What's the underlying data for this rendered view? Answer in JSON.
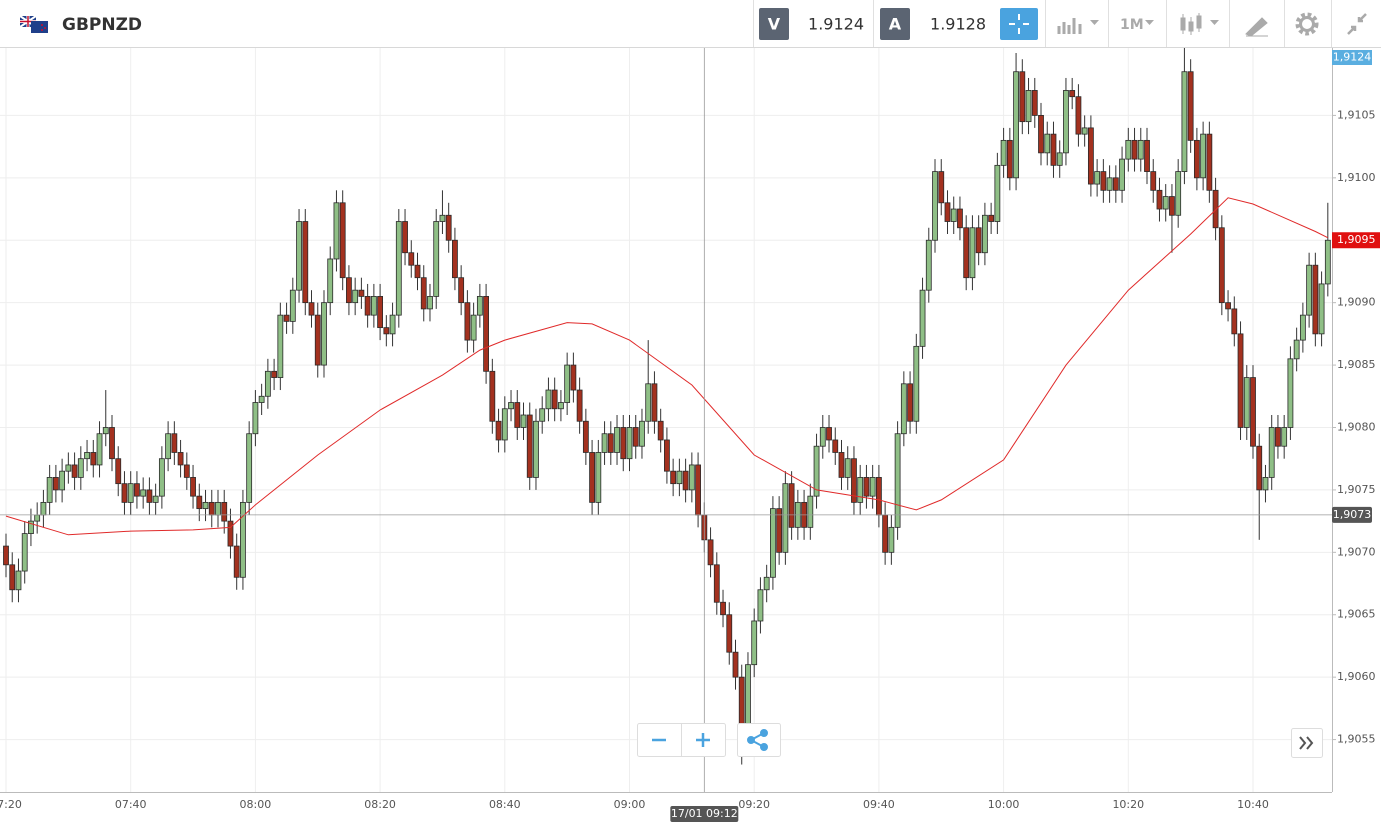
{
  "header": {
    "symbol": "GBPNZD",
    "sell": {
      "label": "V",
      "price": "1.9124"
    },
    "buy": {
      "label": "A",
      "price": "1.9128"
    },
    "timeframe": "1M"
  },
  "chart_data": {
    "type": "candlestick",
    "x": [
      "07:20",
      "07:21",
      "07:22",
      "07:23",
      "07:24",
      "07:25",
      "07:26",
      "07:27",
      "07:28",
      "07:29",
      "07:30",
      "07:31",
      "07:32",
      "07:33",
      "07:34",
      "07:35",
      "07:36",
      "07:37",
      "07:38",
      "07:39",
      "07:40",
      "07:41",
      "07:42",
      "07:43",
      "07:44",
      "07:45",
      "07:46",
      "07:47",
      "07:48",
      "07:49",
      "07:50",
      "07:51",
      "07:52",
      "07:53",
      "07:54",
      "07:55",
      "07:56",
      "07:57",
      "07:58",
      "07:59",
      "08:00",
      "08:01",
      "08:02",
      "08:03",
      "08:04",
      "08:05",
      "08:06",
      "08:07",
      "08:08",
      "08:09",
      "08:10",
      "08:11",
      "08:12",
      "08:13",
      "08:14",
      "08:15",
      "08:16",
      "08:17",
      "08:18",
      "08:19",
      "08:20",
      "08:21",
      "08:22",
      "08:23",
      "08:24",
      "08:25",
      "08:26",
      "08:27",
      "08:28",
      "08:29",
      "08:30",
      "08:31",
      "08:32",
      "08:33",
      "08:34",
      "08:35",
      "08:36",
      "08:37",
      "08:38",
      "08:39",
      "08:40",
      "08:41",
      "08:42",
      "08:43",
      "08:44",
      "08:45",
      "08:46",
      "08:47",
      "08:48",
      "08:49",
      "08:50",
      "08:51",
      "08:52",
      "08:53",
      "08:54",
      "08:55",
      "08:56",
      "08:57",
      "08:58",
      "08:59",
      "09:00",
      "09:01",
      "09:02",
      "09:03",
      "09:04",
      "09:05",
      "09:06",
      "09:07",
      "09:08",
      "09:09",
      "09:10",
      "09:11",
      "09:12",
      "09:13",
      "09:14",
      "09:15",
      "09:16",
      "09:17",
      "09:18",
      "09:19",
      "09:20",
      "09:21",
      "09:22",
      "09:23",
      "09:24",
      "09:25",
      "09:26",
      "09:27",
      "09:28",
      "09:29",
      "09:30",
      "09:31",
      "09:32",
      "09:33",
      "09:34",
      "09:35",
      "09:36",
      "09:37",
      "09:38",
      "09:39",
      "09:40",
      "09:41",
      "09:42",
      "09:43",
      "09:44",
      "09:45",
      "09:46",
      "09:47",
      "09:48",
      "09:49",
      "09:50",
      "09:51",
      "09:52",
      "09:53",
      "09:54",
      "09:55",
      "09:56",
      "09:57",
      "09:58",
      "09:59",
      "10:00",
      "10:01",
      "10:02",
      "10:03",
      "10:04",
      "10:05",
      "10:06",
      "10:07",
      "10:08",
      "10:09",
      "10:10",
      "10:11",
      "10:12",
      "10:13",
      "10:14",
      "10:15",
      "10:16",
      "10:17",
      "10:18",
      "10:19",
      "10:20",
      "10:21",
      "10:22",
      "10:23",
      "10:24",
      "10:25",
      "10:26",
      "10:27",
      "10:28",
      "10:29",
      "10:30",
      "10:31",
      "10:32",
      "10:33",
      "10:34",
      "10:35",
      "10:36",
      "10:37",
      "10:38",
      "10:39",
      "10:40",
      "10:41",
      "10:42",
      "10:43",
      "10:44",
      "10:45",
      "10:46",
      "10:47",
      "10:48",
      "10:49",
      "10:50",
      "10:51",
      "10:52"
    ],
    "open": [
      1.90705,
      1.9069,
      1.9067,
      1.90685,
      1.90715,
      1.90725,
      1.9073,
      1.9074,
      1.9076,
      1.9075,
      1.90765,
      1.9077,
      1.9076,
      1.90775,
      1.9078,
      1.9077,
      1.90795,
      1.908,
      1.90775,
      1.90755,
      1.9074,
      1.90755,
      1.90745,
      1.9075,
      1.9074,
      1.90745,
      1.90775,
      1.90795,
      1.9078,
      1.9077,
      1.9076,
      1.90745,
      1.90735,
      1.9074,
      1.9073,
      1.9074,
      1.90725,
      1.90705,
      1.9068,
      1.9074,
      1.90795,
      1.9082,
      1.90825,
      1.90845,
      1.9084,
      1.9089,
      1.90885,
      1.9091,
      1.90965,
      1.909,
      1.9089,
      1.9085,
      1.909,
      1.90935,
      1.9098,
      1.9092,
      1.909,
      1.9091,
      1.90905,
      1.9089,
      1.90905,
      1.9088,
      1.90875,
      1.9089,
      1.90965,
      1.9094,
      1.9093,
      1.9092,
      1.90895,
      1.90905,
      1.90965,
      1.9097,
      1.9095,
      1.9092,
      1.909,
      1.9087,
      1.9089,
      1.90905,
      1.90845,
      1.90805,
      1.9079,
      1.90815,
      1.9082,
      1.908,
      1.9081,
      1.9076,
      1.90805,
      1.90815,
      1.9083,
      1.90815,
      1.9082,
      1.9085,
      1.9083,
      1.90805,
      1.9078,
      1.9074,
      1.9078,
      1.90795,
      1.9078,
      1.908,
      1.90775,
      1.908,
      1.90785,
      1.90805,
      1.90835,
      1.90805,
      1.9079,
      1.90765,
      1.90755,
      1.90765,
      1.9075,
      1.9077,
      1.9073,
      1.9071,
      1.9069,
      1.9066,
      1.9065,
      1.9062,
      1.906,
      1.9056,
      1.9061,
      1.90645,
      1.9067,
      1.9068,
      1.90735,
      1.907,
      1.90755,
      1.9072,
      1.9074,
      1.9072,
      1.90745,
      1.90785,
      1.908,
      1.9079,
      1.9078,
      1.9076,
      1.90775,
      1.9074,
      1.9076,
      1.90745,
      1.9076,
      1.9073,
      1.907,
      1.9072,
      1.90795,
      1.90835,
      1.90805,
      1.90865,
      1.9091,
      1.9095,
      1.91005,
      1.9098,
      1.90965,
      1.90975,
      1.9096,
      1.9092,
      1.9096,
      1.9094,
      1.9097,
      1.90965,
      1.9101,
      1.9103,
      1.91,
      1.91085,
      1.91045,
      1.9107,
      1.9105,
      1.9102,
      1.91035,
      1.9101,
      1.9102,
      1.9107,
      1.91065,
      1.91035,
      1.9104,
      1.90995,
      1.91005,
      1.9099,
      1.91,
      1.9099,
      1.91015,
      1.9103,
      1.91015,
      1.9103,
      1.91005,
      1.9099,
      1.90975,
      1.90985,
      1.9097,
      1.91005,
      1.91085,
      1.9103,
      1.91,
      1.91035,
      1.9099,
      1.9096,
      1.909,
      1.90895,
      1.90875,
      1.908,
      1.9084,
      1.90785,
      1.9075,
      1.9076,
      1.908,
      1.90785,
      1.908,
      1.90855,
      1.9087,
      1.9089,
      1.9093,
      1.90875,
      1.90915
    ],
    "high": [
      1.90715,
      1.907,
      1.90695,
      1.90725,
      1.90735,
      1.9074,
      1.9075,
      1.9077,
      1.9077,
      1.90775,
      1.9078,
      1.9078,
      1.90785,
      1.9079,
      1.9079,
      1.90805,
      1.9083,
      1.9081,
      1.90785,
      1.90765,
      1.90765,
      1.90765,
      1.9076,
      1.9076,
      1.90755,
      1.90785,
      1.90805,
      1.90805,
      1.9079,
      1.9078,
      1.9077,
      1.90755,
      1.9075,
      1.9075,
      1.9075,
      1.9075,
      1.90735,
      1.90715,
      1.9075,
      1.90805,
      1.9083,
      1.90835,
      1.90855,
      1.90855,
      1.909,
      1.909,
      1.9092,
      1.90975,
      1.90975,
      1.9091,
      1.909,
      1.9091,
      1.90945,
      1.9099,
      1.9099,
      1.9093,
      1.9092,
      1.9092,
      1.90915,
      1.90915,
      1.90915,
      1.9089,
      1.909,
      1.90975,
      1.90975,
      1.9095,
      1.9094,
      1.9093,
      1.90915,
      1.90975,
      1.9099,
      1.9098,
      1.9096,
      1.9093,
      1.9091,
      1.909,
      1.90915,
      1.90915,
      1.90855,
      1.90815,
      1.90825,
      1.9083,
      1.9083,
      1.9082,
      1.9082,
      1.90815,
      1.90825,
      1.9084,
      1.9084,
      1.9083,
      1.9086,
      1.9086,
      1.9084,
      1.90815,
      1.9079,
      1.9079,
      1.90805,
      1.90805,
      1.9081,
      1.9081,
      1.9081,
      1.9081,
      1.90815,
      1.9087,
      1.90845,
      1.90815,
      1.908,
      1.90775,
      1.90775,
      1.90775,
      1.9078,
      1.9078,
      1.9074,
      1.9072,
      1.907,
      1.9067,
      1.9066,
      1.9063,
      1.9061,
      1.9062,
      1.90655,
      1.9068,
      1.9069,
      1.90745,
      1.90745,
      1.90765,
      1.90765,
      1.9075,
      1.9075,
      1.90755,
      1.90795,
      1.9081,
      1.9081,
      1.908,
      1.9079,
      1.90785,
      1.90785,
      1.9077,
      1.9077,
      1.9077,
      1.9077,
      1.9074,
      1.9073,
      1.90805,
      1.90845,
      1.90845,
      1.90875,
      1.9092,
      1.9096,
      1.91015,
      1.91015,
      1.9099,
      1.90985,
      1.90985,
      1.9097,
      1.9097,
      1.9097,
      1.9098,
      1.9098,
      1.9102,
      1.9104,
      1.9104,
      1.911,
      1.91095,
      1.9108,
      1.9108,
      1.9106,
      1.91045,
      1.91045,
      1.9103,
      1.9108,
      1.9108,
      1.91075,
      1.9105,
      1.9105,
      1.91015,
      1.91015,
      1.9101,
      1.9101,
      1.91025,
      1.9104,
      1.9104,
      1.9104,
      1.9104,
      1.91015,
      1.91,
      1.90995,
      1.90995,
      1.91015,
      1.9111,
      1.91095,
      1.9104,
      1.91045,
      1.91045,
      1.91,
      1.9097,
      1.9091,
      1.90905,
      1.90885,
      1.9085,
      1.9085,
      1.90795,
      1.9077,
      1.9081,
      1.9081,
      1.9081,
      1.90865,
      1.9088,
      1.909,
      1.9094,
      1.9094,
      1.90925,
      1.9098
    ],
    "low": [
      1.9068,
      1.9066,
      1.9066,
      1.90675,
      1.90705,
      1.90715,
      1.9072,
      1.9073,
      1.9074,
      1.9074,
      1.90755,
      1.9075,
      1.9075,
      1.90765,
      1.9076,
      1.9076,
      1.90785,
      1.90765,
      1.90745,
      1.9073,
      1.9073,
      1.90735,
      1.90735,
      1.9073,
      1.9073,
      1.90735,
      1.90765,
      1.9077,
      1.9076,
      1.9075,
      1.90735,
      1.90725,
      1.90725,
      1.9072,
      1.9072,
      1.90715,
      1.90695,
      1.9067,
      1.9067,
      1.9073,
      1.90785,
      1.9081,
      1.90815,
      1.9083,
      1.9083,
      1.90875,
      1.90875,
      1.909,
      1.9089,
      1.9088,
      1.9084,
      1.9084,
      1.9089,
      1.90925,
      1.9091,
      1.9089,
      1.9089,
      1.90895,
      1.9088,
      1.9088,
      1.9087,
      1.90865,
      1.90865,
      1.9088,
      1.9093,
      1.9092,
      1.9091,
      1.90885,
      1.90885,
      1.90895,
      1.90955,
      1.9094,
      1.9091,
      1.9089,
      1.9086,
      1.9086,
      1.9088,
      1.90835,
      1.90795,
      1.9078,
      1.9078,
      1.90805,
      1.9079,
      1.9079,
      1.9075,
      1.9075,
      1.90795,
      1.90805,
      1.90805,
      1.90805,
      1.9081,
      1.9082,
      1.90795,
      1.9077,
      1.9073,
      1.9073,
      1.9077,
      1.9077,
      1.9077,
      1.90765,
      1.90765,
      1.90775,
      1.90775,
      1.90795,
      1.90795,
      1.9078,
      1.90755,
      1.90745,
      1.90745,
      1.9074,
      1.9074,
      1.9072,
      1.907,
      1.9068,
      1.9065,
      1.9064,
      1.9061,
      1.9059,
      1.9053,
      1.9055,
      1.906,
      1.90635,
      1.9066,
      1.9067,
      1.9069,
      1.9069,
      1.9071,
      1.9071,
      1.9071,
      1.9071,
      1.90735,
      1.90775,
      1.9078,
      1.9077,
      1.9075,
      1.9075,
      1.9073,
      1.9073,
      1.90735,
      1.90735,
      1.9072,
      1.9069,
      1.9069,
      1.9071,
      1.90785,
      1.90795,
      1.90795,
      1.90855,
      1.909,
      1.9094,
      1.9097,
      1.90955,
      1.90955,
      1.9095,
      1.9091,
      1.9091,
      1.9093,
      1.9093,
      1.90955,
      1.90955,
      1.91,
      1.9099,
      1.9099,
      1.91035,
      1.91035,
      1.9104,
      1.9101,
      1.9101,
      1.91,
      1.91,
      1.9101,
      1.91055,
      1.91025,
      1.91025,
      1.90985,
      1.90985,
      1.9098,
      1.9098,
      1.9098,
      1.9098,
      1.91005,
      1.91005,
      1.91005,
      1.90995,
      1.9098,
      1.90965,
      1.90965,
      1.9094,
      1.9096,
      1.90995,
      1.9102,
      1.9099,
      1.9099,
      1.9098,
      1.9095,
      1.9089,
      1.90885,
      1.90865,
      1.9079,
      1.9079,
      1.90775,
      1.9071,
      1.9074,
      1.9075,
      1.90775,
      1.90775,
      1.9079,
      1.90845,
      1.9086,
      1.9088,
      1.90865,
      1.90865,
      1.90905
    ],
    "close": [
      1.9069,
      1.9067,
      1.90685,
      1.90715,
      1.90725,
      1.9073,
      1.9074,
      1.9076,
      1.9075,
      1.90765,
      1.9077,
      1.9076,
      1.90775,
      1.9078,
      1.9077,
      1.90795,
      1.908,
      1.90775,
      1.90755,
      1.9074,
      1.90755,
      1.90745,
      1.9075,
      1.9074,
      1.90745,
      1.90775,
      1.90795,
      1.9078,
      1.9077,
      1.9076,
      1.90745,
      1.90735,
      1.9074,
      1.9073,
      1.9074,
      1.90725,
      1.90705,
      1.9068,
      1.9074,
      1.90795,
      1.9082,
      1.90825,
      1.90845,
      1.9084,
      1.9089,
      1.90885,
      1.9091,
      1.90965,
      1.909,
      1.9089,
      1.9085,
      1.909,
      1.90935,
      1.9098,
      1.9092,
      1.909,
      1.9091,
      1.90905,
      1.9089,
      1.90905,
      1.9088,
      1.90875,
      1.9089,
      1.90965,
      1.9094,
      1.9093,
      1.9092,
      1.90895,
      1.90905,
      1.90965,
      1.9097,
      1.9095,
      1.9092,
      1.909,
      1.9087,
      1.9089,
      1.90905,
      1.90845,
      1.90805,
      1.9079,
      1.90815,
      1.9082,
      1.908,
      1.9081,
      1.9076,
      1.90805,
      1.90815,
      1.9083,
      1.90815,
      1.9082,
      1.9085,
      1.9083,
      1.90805,
      1.9078,
      1.9074,
      1.9078,
      1.90795,
      1.9078,
      1.908,
      1.90775,
      1.908,
      1.90785,
      1.90805,
      1.90835,
      1.90805,
      1.9079,
      1.90765,
      1.90755,
      1.90765,
      1.9075,
      1.9077,
      1.9073,
      1.9071,
      1.9069,
      1.9066,
      1.9065,
      1.9062,
      1.906,
      1.9056,
      1.9061,
      1.90645,
      1.9067,
      1.9068,
      1.90735,
      1.907,
      1.90755,
      1.9072,
      1.9074,
      1.9072,
      1.90745,
      1.90785,
      1.908,
      1.9079,
      1.9078,
      1.9076,
      1.90775,
      1.9074,
      1.9076,
      1.90745,
      1.9076,
      1.9073,
      1.907,
      1.9072,
      1.90795,
      1.90835,
      1.90805,
      1.90865,
      1.9091,
      1.9095,
      1.91005,
      1.9098,
      1.90965,
      1.90975,
      1.9096,
      1.9092,
      1.9096,
      1.9094,
      1.9097,
      1.90965,
      1.9101,
      1.9103,
      1.91,
      1.91085,
      1.91045,
      1.9107,
      1.9105,
      1.9102,
      1.91035,
      1.9101,
      1.9102,
      1.9107,
      1.91065,
      1.91035,
      1.9104,
      1.90995,
      1.91005,
      1.9099,
      1.91,
      1.9099,
      1.91015,
      1.9103,
      1.91015,
      1.9103,
      1.91005,
      1.9099,
      1.90975,
      1.90985,
      1.9097,
      1.91005,
      1.91085,
      1.9103,
      1.91,
      1.91035,
      1.9099,
      1.9096,
      1.909,
      1.90895,
      1.90875,
      1.908,
      1.9084,
      1.90785,
      1.9075,
      1.9076,
      1.908,
      1.90785,
      1.908,
      1.90855,
      1.9087,
      1.9089,
      1.9093,
      1.90875,
      1.90915,
      1.9095
    ],
    "up_color": "#8fbf86",
    "down_color": "#a3311f",
    "ma": {
      "color": "#e02a2a",
      "x": [
        "07:20",
        "07:30",
        "07:40",
        "07:50",
        "07:56",
        "08:00",
        "08:10",
        "08:20",
        "08:30",
        "08:36",
        "08:40",
        "08:50",
        "08:54",
        "09:00",
        "09:10",
        "09:20",
        "09:30",
        "09:40",
        "09:46",
        "09:50",
        "10:00",
        "10:10",
        "10:20",
        "10:30",
        "10:36",
        "10:40",
        "10:50",
        "10:52"
      ],
      "values": [
        1.90729,
        1.90714,
        1.90717,
        1.90718,
        1.9072,
        1.90738,
        1.90778,
        1.90814,
        1.90842,
        1.90862,
        1.9087,
        1.90884,
        1.90883,
        1.9087,
        1.90834,
        1.90778,
        1.9075,
        1.90742,
        1.90734,
        1.90742,
        1.90774,
        1.9085,
        1.9091,
        1.90955,
        1.90984,
        1.90979,
        1.90957,
        1.90952
      ]
    },
    "ylim": [
      1.90508,
      1.91104
    ],
    "yticks": [
      {
        "value": 1.9055,
        "label": "1,9055"
      },
      {
        "value": 1.906,
        "label": "1,9060"
      },
      {
        "value": 1.9065,
        "label": "1,9065"
      },
      {
        "value": 1.907,
        "label": "1,9070"
      },
      {
        "value": 1.9075,
        "label": "1,9075"
      },
      {
        "value": 1.908,
        "label": "1,9080"
      },
      {
        "value": 1.9085,
        "label": "1,9085"
      },
      {
        "value": 1.909,
        "label": "1,9090"
      },
      {
        "value": 1.9095,
        "label": "1,9095"
      },
      {
        "value": 1.91,
        "label": "1,9100"
      },
      {
        "value": 1.9105,
        "label": "1,9105"
      }
    ],
    "xticks": [
      "07:20",
      "07:40",
      "08:00",
      "08:20",
      "08:40",
      "09:00",
      "09:20",
      "09:40",
      "10:00",
      "10:20",
      "10:40"
    ],
    "grid": true,
    "top_badge": {
      "label": "1,9124",
      "color": "#5aaee0"
    },
    "last_price": {
      "value": 1.9095,
      "label": "1,9095",
      "color": "#e01010"
    },
    "crosshair": {
      "x": "09:12",
      "x_label": "17/01 09:12",
      "y": {
        "value": 1.9073,
        "label": "1,9073"
      }
    }
  }
}
